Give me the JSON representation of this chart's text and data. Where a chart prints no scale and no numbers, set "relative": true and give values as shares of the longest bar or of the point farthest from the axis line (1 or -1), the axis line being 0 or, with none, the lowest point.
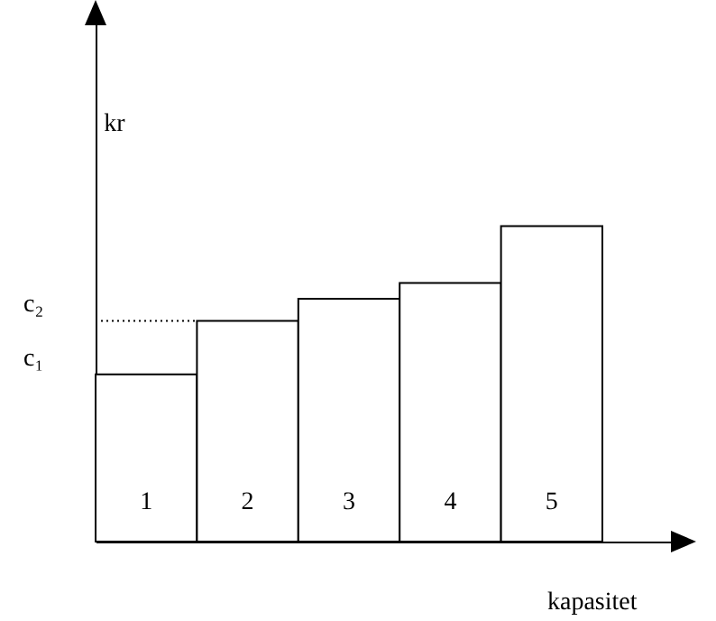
{
  "chart_data": {
    "type": "bar",
    "relative": true,
    "categories": [
      "1",
      "2",
      "3",
      "4",
      "5"
    ],
    "values": [
      0.53,
      0.7,
      0.77,
      0.82,
      1
    ],
    "color": "#ffffff",
    "xlabel": "kapasitet",
    "ylabel": "kr",
    "annotations": [
      "c₁"
    ],
    "ref_lines": [
      {
        "axis": "y",
        "value": 0.7,
        "label": "c₂",
        "line_style": "dotted"
      }
    ]
  }
}
